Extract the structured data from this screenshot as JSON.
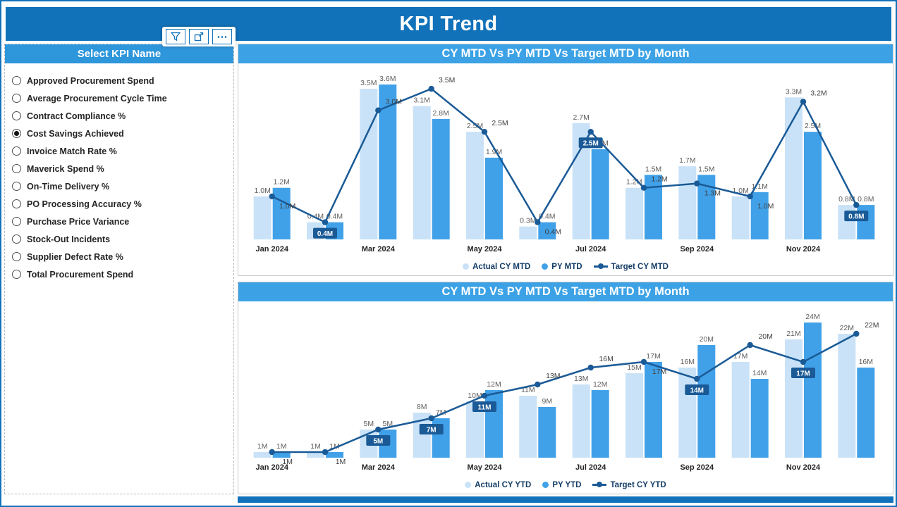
{
  "header": {
    "title": "KPI Trend"
  },
  "toolbar": {
    "icons": [
      "filter-icon",
      "focus-mode-icon",
      "more-options-icon"
    ],
    "more_glyph": "⋯"
  },
  "slicer": {
    "title": "Select KPI Name",
    "options": [
      "Approved Procurement Spend",
      "Average Procurement Cycle Time",
      "Contract Compliance %",
      "Cost Savings Achieved",
      "Invoice Match Rate %",
      "Maverick Spend %",
      "On-Time Delivery %",
      "PO Processing Accuracy %",
      "Purchase Price Variance",
      "Stock-Out Incidents",
      "Supplier Defect Rate %",
      "Total Procurement Spend"
    ],
    "selected": "Cost Savings Achieved"
  },
  "chart_data": [
    {
      "type": "combo-bar-line",
      "title": "CY MTD Vs PY MTD Vs Target MTD by Month",
      "categories": [
        "Jan 2024",
        "Feb 2024",
        "Mar 2024",
        "Apr 2024",
        "May 2024",
        "Jun 2024",
        "Jul 2024",
        "Aug 2024",
        "Sep 2024",
        "Oct 2024",
        "Nov 2024",
        "Dec 2024"
      ],
      "x_axis_ticks_shown": [
        "Jan 2024",
        "Mar 2024",
        "May 2024",
        "Jul 2024",
        "Sep 2024",
        "Nov 2024"
      ],
      "unit": "M",
      "value_decimals": 1,
      "ylim": [
        0,
        3.6
      ],
      "grid": false,
      "legend_position": "bottom",
      "series": [
        {
          "name": "Actual CY MTD",
          "role": "bar",
          "marker": "dot-light",
          "values": [
            1.0,
            0.4,
            3.5,
            3.1,
            2.5,
            0.3,
            2.7,
            1.2,
            1.7,
            1.0,
            3.3,
            0.8
          ]
        },
        {
          "name": "PY MTD",
          "role": "bar",
          "marker": "dot-mid",
          "values": [
            1.2,
            0.4,
            3.6,
            2.8,
            1.9,
            0.4,
            2.1,
            1.5,
            1.5,
            1.1,
            2.5,
            0.8
          ]
        },
        {
          "name": "Target CY MTD",
          "role": "line",
          "marker": "line-dot",
          "values": [
            1.0,
            0.4,
            3.0,
            3.5,
            2.5,
            0.4,
            2.5,
            1.2,
            1.3,
            1.0,
            3.2,
            0.8
          ],
          "boxed_label_indices": [
            1,
            6,
            11
          ]
        }
      ]
    },
    {
      "type": "combo-bar-line",
      "title": "CY MTD Vs PY MTD Vs Target MTD by Month",
      "categories": [
        "Jan 2024",
        "Feb 2024",
        "Mar 2024",
        "Apr 2024",
        "May 2024",
        "Jun 2024",
        "Jul 2024",
        "Aug 2024",
        "Sep 2024",
        "Oct 2024",
        "Nov 2024",
        "Dec 2024"
      ],
      "x_axis_ticks_shown": [
        "Jan 2024",
        "Mar 2024",
        "May 2024",
        "Jul 2024",
        "Sep 2024",
        "Nov 2024"
      ],
      "unit": "M",
      "value_decimals": 0,
      "ylim": [
        0,
        24
      ],
      "grid": false,
      "legend_position": "bottom",
      "series": [
        {
          "name": "Actual CY YTD",
          "role": "bar",
          "marker": "dot-light",
          "values": [
            1,
            1,
            5,
            8,
            10,
            11,
            13,
            15,
            16,
            17,
            21,
            22
          ]
        },
        {
          "name": "PY YTD",
          "role": "bar",
          "marker": "dot-mid",
          "values": [
            1,
            1,
            5,
            7,
            12,
            9,
            12,
            17,
            20,
            14,
            24,
            16
          ]
        },
        {
          "name": "Target CY YTD",
          "role": "line",
          "marker": "line-dot",
          "values": [
            1,
            1,
            5,
            7,
            11,
            13,
            16,
            17,
            14,
            20,
            17,
            22
          ],
          "boxed_label_indices": [
            2,
            3,
            4,
            8,
            10
          ]
        }
      ]
    }
  ],
  "colors": {
    "header_bg": "#1172BA",
    "slicer_title_bg": "#2E96DB",
    "chart_title_bg": "#3CA2E5",
    "bar_actual": "#C9E2F7",
    "bar_py": "#41A1E8",
    "target_line": "#1A5A96",
    "label_text": "#605E5C",
    "axis_text": "#252423",
    "legend_text": "#143D66"
  }
}
